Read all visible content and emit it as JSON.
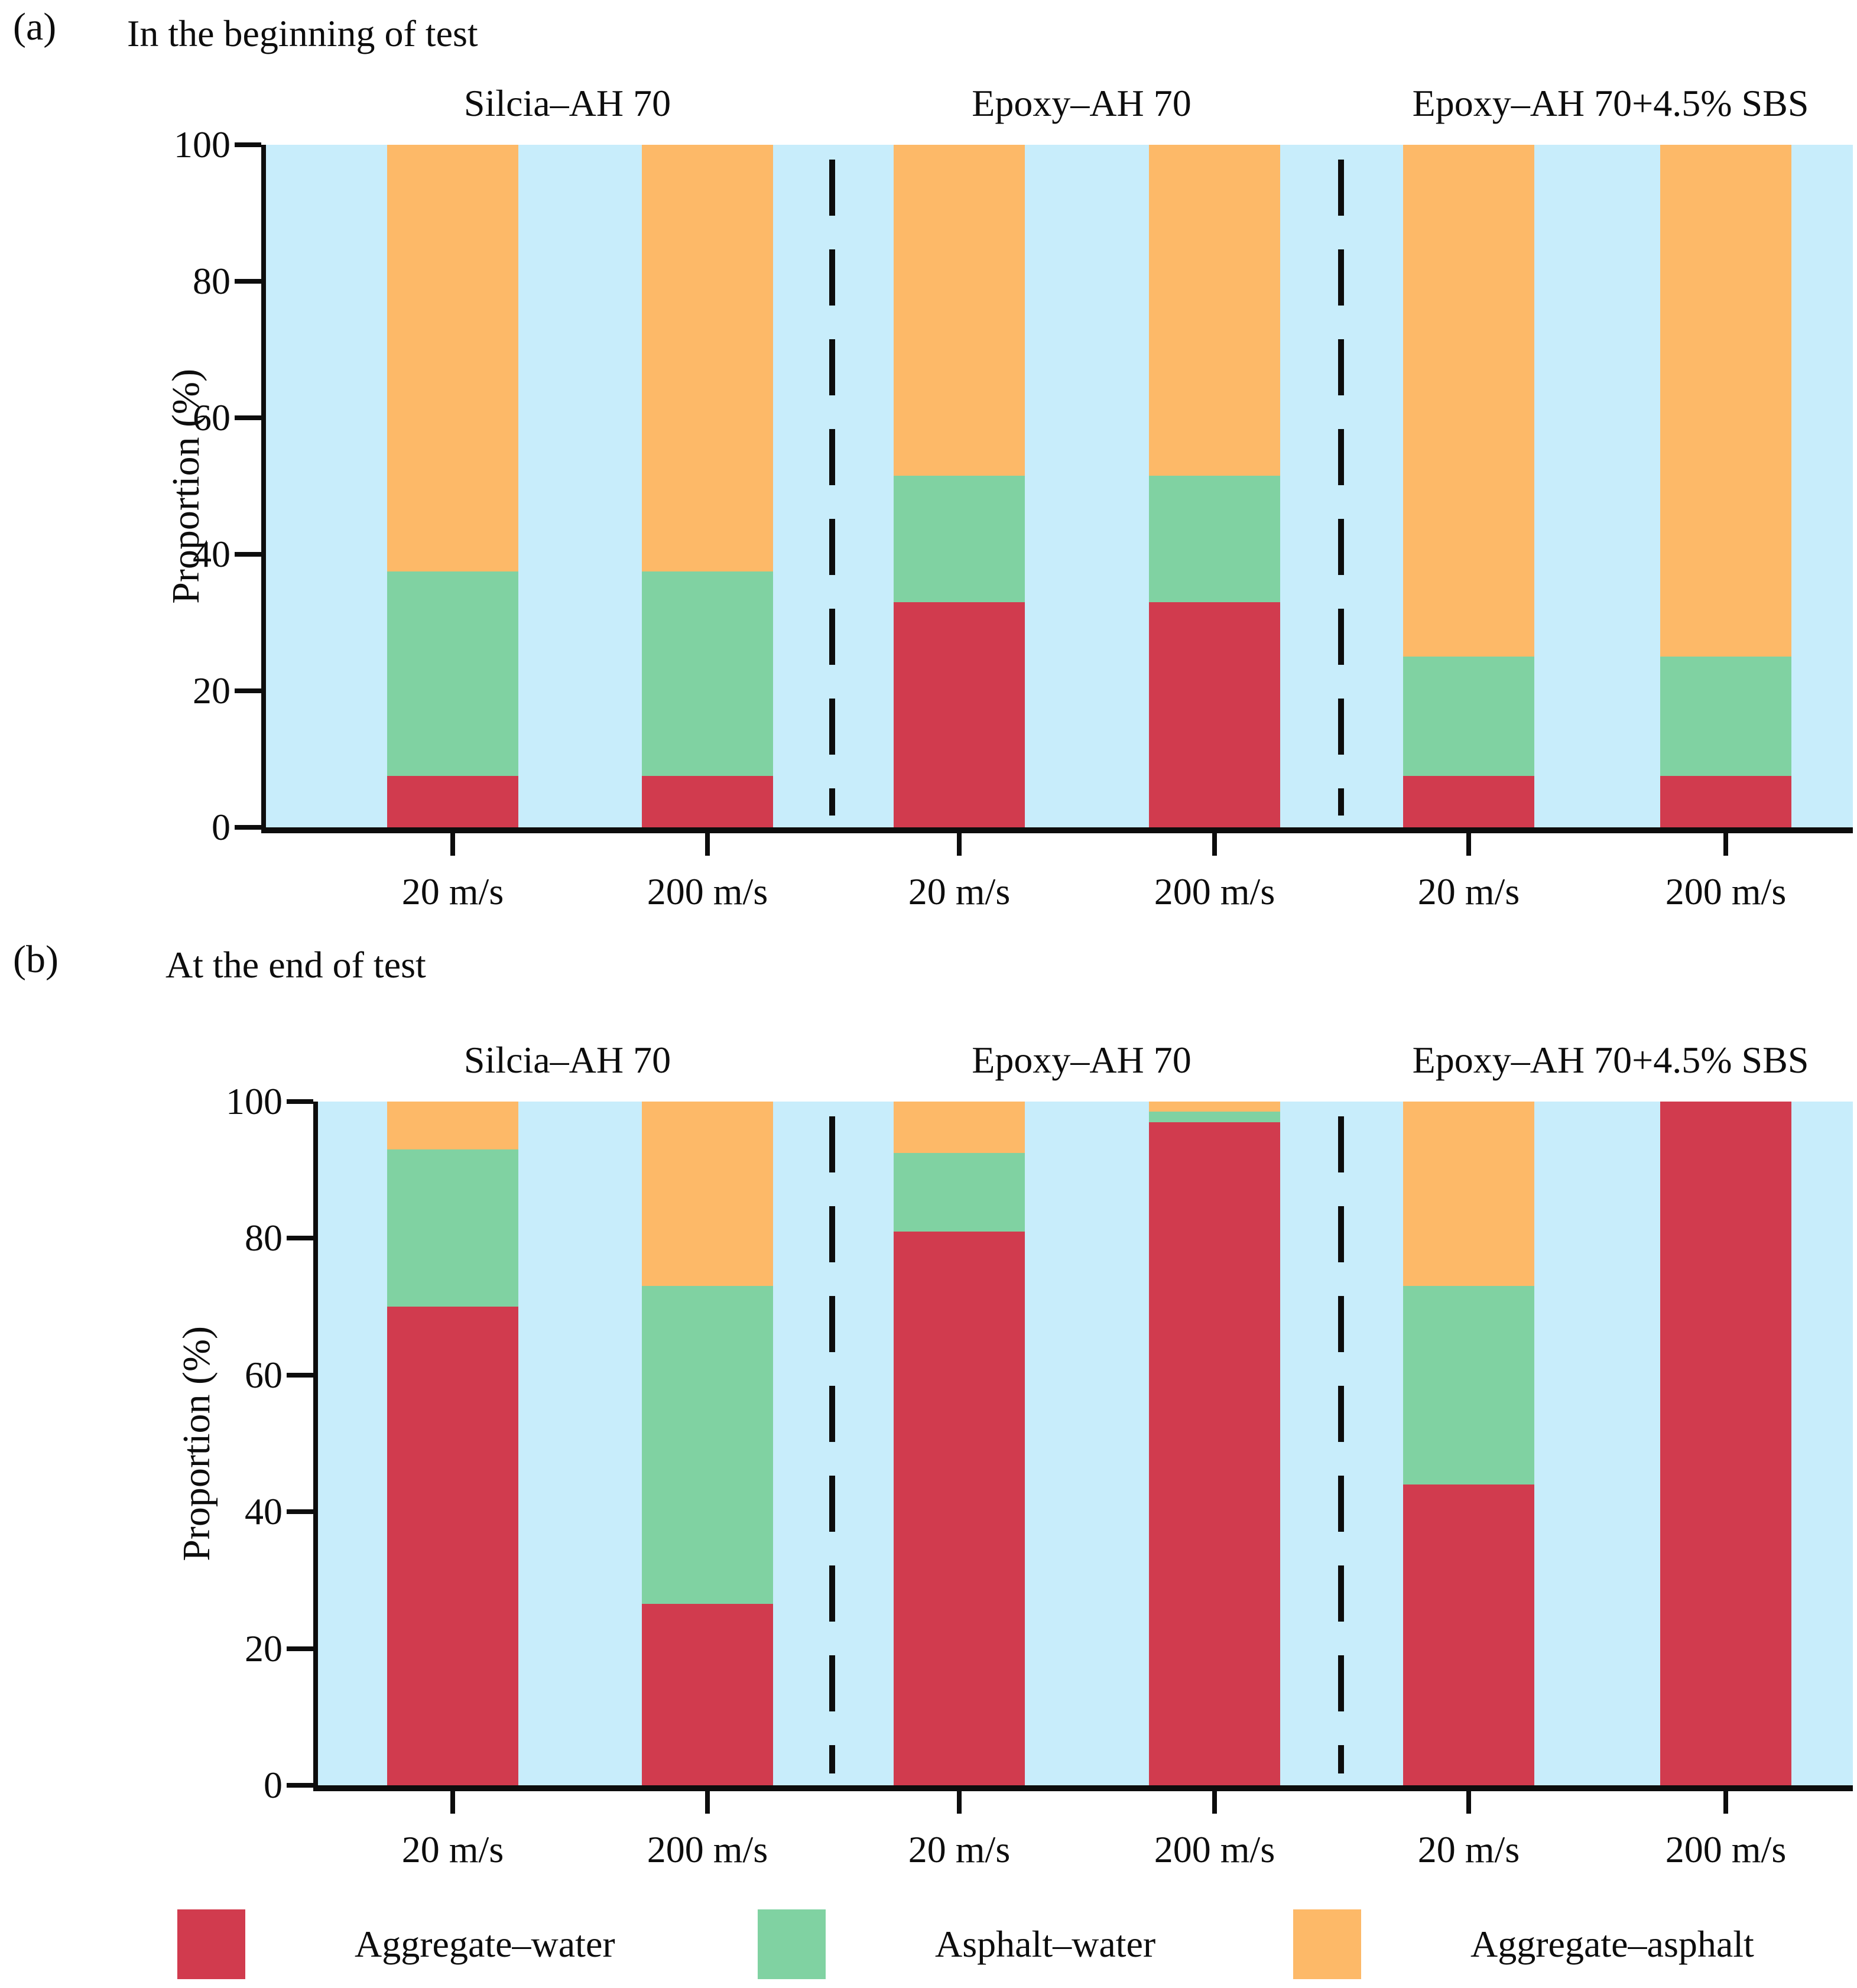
{
  "figure": {
    "panels": [
      {
        "index_label": "(a)",
        "title": "In the beginning of test"
      },
      {
        "index_label": "(b)",
        "title": "At the end of test"
      }
    ],
    "legend": {
      "items": [
        {
          "label": "Aggregate–water",
          "color": "#d13b4e"
        },
        {
          "label": "Asphalt–water",
          "color": "#80d2a2"
        },
        {
          "label": "Aggregate–asphalt",
          "color": "#fdb968"
        }
      ]
    },
    "colors": {
      "aggregate_water": "#d13b4e",
      "asphalt_water": "#80d2a2",
      "aggregate_asphalt": "#fdb968",
      "plot_background": "#c8edfb",
      "axis": "#0d0d0d"
    }
  },
  "chart_data": [
    {
      "type": "bar",
      "stacked": true,
      "title": "In the beginning of test",
      "groups": [
        "Silcia–AH 70",
        "Epoxy–AH 70",
        "Epoxy–AH 70+4.5% SBS"
      ],
      "categories": [
        "20 m/s",
        "200 m/s",
        "20 m/s",
        "200 m/s",
        "20 m/s",
        "200 m/s"
      ],
      "xlabel": "",
      "ylabel": "Proportion (%)",
      "ylim": [
        0,
        100
      ],
      "yticks": [
        0,
        20,
        40,
        60,
        80,
        100
      ],
      "grid": false,
      "legend_position": "bottom",
      "plot_background": "#c8edfb",
      "series": [
        {
          "name": "Aggregate–water",
          "color": "#d13b4e",
          "values": [
            7.5,
            7.5,
            33,
            33,
            7.5,
            7.5
          ]
        },
        {
          "name": "Asphalt–water",
          "color": "#80d2a2",
          "values": [
            30,
            30,
            18.5,
            18.5,
            17.5,
            17.5
          ]
        },
        {
          "name": "Aggregate–asphalt",
          "color": "#fdb968",
          "values": [
            62.5,
            62.5,
            48.5,
            48.5,
            75,
            75
          ]
        }
      ]
    },
    {
      "type": "bar",
      "stacked": true,
      "title": "At the end of test",
      "groups": [
        "Silcia–AH 70",
        "Epoxy–AH 70",
        "Epoxy–AH 70+4.5% SBS"
      ],
      "categories": [
        "20 m/s",
        "200 m/s",
        "20 m/s",
        "200 m/s",
        "20 m/s",
        "200 m/s"
      ],
      "xlabel": "",
      "ylabel": "Proportion (%)",
      "ylim": [
        0,
        100
      ],
      "yticks": [
        0,
        20,
        40,
        60,
        80,
        100
      ],
      "grid": false,
      "legend_position": "bottom",
      "plot_background": "#c8edfb",
      "series": [
        {
          "name": "Aggregate–water",
          "color": "#d13b4e",
          "values": [
            70,
            26.5,
            81,
            97,
            44,
            100
          ]
        },
        {
          "name": "Asphalt–water",
          "color": "#80d2a2",
          "values": [
            23,
            46.5,
            11.5,
            1.5,
            29,
            0
          ]
        },
        {
          "name": "Aggregate–asphalt",
          "color": "#fdb968",
          "values": [
            7,
            27,
            7.5,
            1.5,
            27,
            0
          ]
        }
      ]
    }
  ]
}
